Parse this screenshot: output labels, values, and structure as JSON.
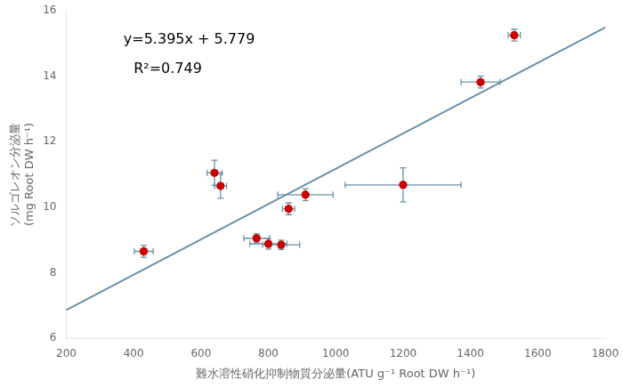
{
  "chart_data": {
    "type": "scatter",
    "xlabel": "難水溶性硝化抑制物質分泌量(ATU g⁻¹ Root DW h⁻¹)",
    "ylabel": [
      "ソルゴレオン分泌量",
      "(mg Root DW h⁻¹)"
    ],
    "xlim": [
      200,
      1800
    ],
    "ylim": [
      6,
      16
    ],
    "xticks": [
      200,
      400,
      600,
      800,
      1000,
      1200,
      1400,
      1600,
      1800
    ],
    "yticks": [
      6,
      8,
      10,
      12,
      14,
      16
    ],
    "grid": false,
    "series": [
      {
        "type": "line",
        "color": "#6B8FA8",
        "x": [
          200,
          1800
        ],
        "values": [
          6.858,
          15.49
        ]
      },
      {
        "type": "scatter",
        "color": "#CC0000",
        "x": [
          430,
          640,
          658,
          765,
          800,
          838,
          860,
          910,
          1200,
          1430,
          1530
        ],
        "values": [
          8.65,
          11.05,
          10.65,
          9.05,
          8.88,
          8.85,
          9.95,
          10.38,
          10.68,
          13.82,
          15.25
        ],
        "xerr": [
          28,
          22,
          18,
          38,
          55,
          55,
          18,
          82,
          172,
          58,
          18
        ],
        "yerr": [
          0.18,
          0.38,
          0.38,
          0.14,
          0.16,
          0.14,
          0.18,
          0.18,
          0.52,
          0.18,
          0.18
        ]
      }
    ],
    "annotations": [
      {
        "text": "y=5.395x + 5.779",
        "x": 370,
        "y": 15.1
      },
      {
        "text": "R²=0.749",
        "x": 400,
        "y": 14.2
      }
    ]
  }
}
